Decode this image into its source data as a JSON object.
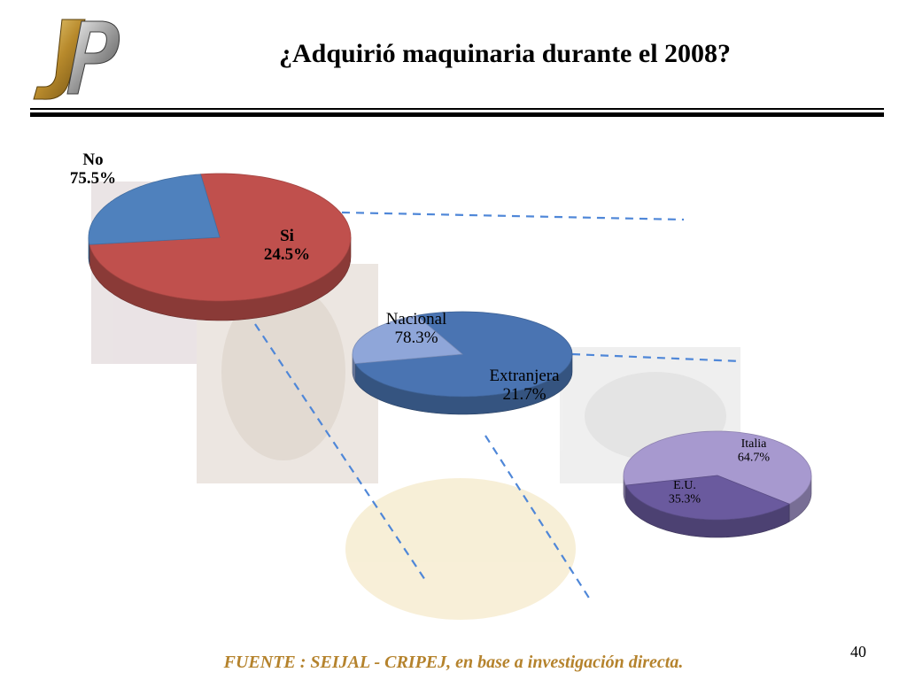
{
  "header": {
    "title": "¿Adquirió maquinaria durante el 2008?",
    "logo_letters": "JP"
  },
  "footer": {
    "source": "FUENTE :  SEIJAL - CRIPEJ,  en base a investigación directa.",
    "page_number": "40"
  },
  "colors": {
    "no": "#c0504d",
    "si": "#4f81bd",
    "nacional": "#4a74b2",
    "extranjera": "#8fa6d9",
    "italia": "#a799cf",
    "eu": "#6a5a9e",
    "dash": "#4f87d8",
    "source": "#b5832d"
  },
  "chart_data": [
    {
      "type": "pie",
      "title": "",
      "slices": [
        {
          "key": "no",
          "label": "No",
          "value_label": "75.5%",
          "value": 75.5,
          "color": "#c0504d"
        },
        {
          "key": "si",
          "label": "Si",
          "value_label": "24.5%",
          "value": 24.5,
          "color": "#4f81bd"
        }
      ]
    },
    {
      "type": "pie",
      "title": "",
      "slices": [
        {
          "key": "nacional",
          "label": "Nacional",
          "value_label": "78.3%",
          "value": 78.3,
          "color": "#4a74b2"
        },
        {
          "key": "extranjera",
          "label": "Extranjera",
          "value_label": "21.7%",
          "value": 21.7,
          "color": "#8fa6d9"
        }
      ]
    },
    {
      "type": "pie",
      "title": "",
      "slices": [
        {
          "key": "italia",
          "label": "Italia",
          "value_label": "64.7%",
          "value": 64.7,
          "color": "#a799cf"
        },
        {
          "key": "eu",
          "label": "E.U.",
          "value_label": "35.3%",
          "value": 35.3,
          "color": "#6a5a9e"
        }
      ]
    }
  ]
}
